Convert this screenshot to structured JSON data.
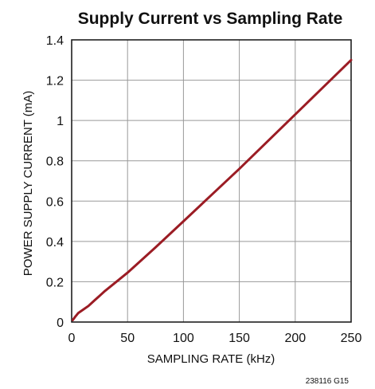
{
  "chart_data": {
    "type": "line",
    "title": "Supply Current vs Sampling Rate",
    "xlabel": "SAMPLING RATE (kHz)",
    "ylabel": "POWER SUPPLY CURRENT (mA)",
    "xlim": [
      0,
      250
    ],
    "ylim": [
      0,
      1.4
    ],
    "xticks": [
      0,
      50,
      100,
      150,
      200,
      250
    ],
    "yticks": [
      0,
      0.2,
      0.4,
      0.6,
      0.8,
      1,
      1.2,
      1.4
    ],
    "xtick_labels": [
      "0",
      "50",
      "100",
      "150",
      "200",
      "250"
    ],
    "ytick_labels": [
      "0",
      "0.2",
      "0.4",
      "0.6",
      "0.8",
      "1",
      "1.2",
      "1.4"
    ],
    "grid": true,
    "line_color": "#9b1c24",
    "series": [
      {
        "x": [
          1,
          3,
          6,
          10,
          15,
          20,
          25,
          30,
          40,
          50,
          75,
          100,
          125,
          150,
          175,
          200,
          225,
          250
        ],
        "y": [
          0.01,
          0.025,
          0.045,
          0.06,
          0.08,
          0.105,
          0.13,
          0.155,
          0.2,
          0.245,
          0.37,
          0.5,
          0.63,
          0.76,
          0.895,
          1.03,
          1.165,
          1.3
        ]
      }
    ]
  },
  "footnote": "238116 G15"
}
